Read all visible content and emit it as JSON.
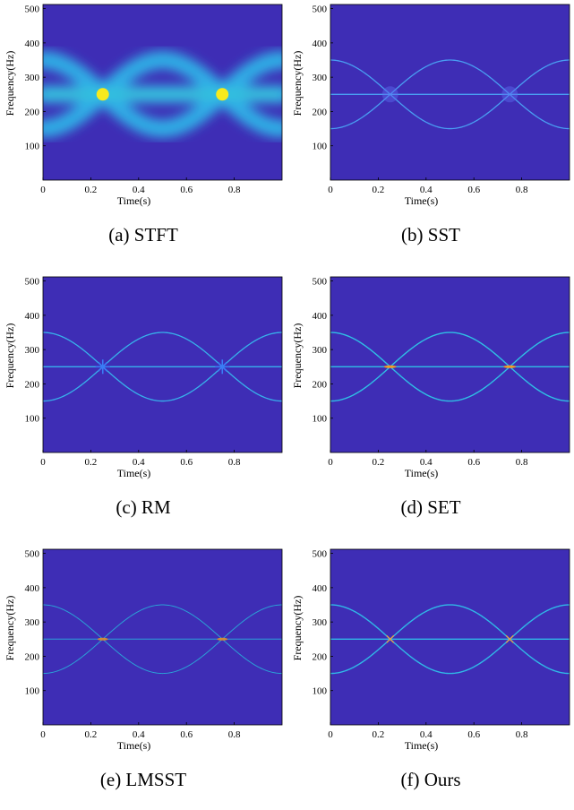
{
  "panels": [
    {
      "caption": "(a) STFT",
      "method": "STFT"
    },
    {
      "caption": "(b) SST",
      "method": "SST"
    },
    {
      "caption": "(c) RM",
      "method": "RM"
    },
    {
      "caption": "(d) SET",
      "method": "SET"
    },
    {
      "caption": "(e) LMSST",
      "method": "LMSST"
    },
    {
      "caption": "(f) Ours",
      "method": "Ours"
    }
  ],
  "chart_data": [
    {
      "type": "heatmap",
      "title": "",
      "xlabel": "Time(s)",
      "ylabel": "Frequency(Hz)",
      "xlim": [
        0,
        1
      ],
      "ylim": [
        0,
        512
      ],
      "xticks": [
        "0",
        "0.2",
        "0.4",
        "0.6",
        "0.8"
      ],
      "yticks": [
        "100",
        "200",
        "300",
        "400",
        "500"
      ],
      "background_color": "#3e2db5",
      "components": [
        {
          "name": "constant tone",
          "frequency_hz": 250
        },
        {
          "name": "sinusoidal FM",
          "center_hz": 250,
          "amplitude_hz": 100,
          "period_s": 1,
          "sign": "negative"
        },
        {
          "name": "sinusoidal FM",
          "center_hz": 250,
          "amplitude_hz": 100,
          "period_s": 1,
          "sign": "positive"
        }
      ],
      "intersections_s": [
        0.25,
        0.75
      ],
      "ridge_appearance": "wide smeared bands, bright yellow at crossings"
    },
    {
      "type": "heatmap",
      "title": "",
      "xlabel": "Time(s)",
      "ylabel": "Frequency(Hz)",
      "xlim": [
        0,
        1
      ],
      "ylim": [
        0,
        512
      ],
      "xticks": [
        "0",
        "0.2",
        "0.4",
        "0.6",
        "0.8"
      ],
      "yticks": [
        "100",
        "200",
        "300",
        "400",
        "500"
      ],
      "background_color": "#3e2db5",
      "components": [
        {
          "name": "constant tone",
          "frequency_hz": 250
        },
        {
          "name": "sinusoidal FM",
          "center_hz": 250,
          "amplitude_hz": 100,
          "period_s": 1,
          "sign": "negative"
        },
        {
          "name": "sinusoidal FM",
          "center_hz": 250,
          "amplitude_hz": 100,
          "period_s": 1,
          "sign": "positive"
        }
      ],
      "intersections_s": [
        0.25,
        0.75
      ],
      "ridge_appearance": "thin ridges, blurred at crossings"
    },
    {
      "type": "heatmap",
      "title": "",
      "xlabel": "Time(s)",
      "ylabel": "Frequency(Hz)",
      "xlim": [
        0,
        1
      ],
      "ylim": [
        0,
        512
      ],
      "xticks": [
        "0",
        "0.2",
        "0.4",
        "0.6",
        "0.8"
      ],
      "yticks": [
        "100",
        "200",
        "300",
        "400",
        "500"
      ],
      "background_color": "#3e2db5",
      "components": [
        {
          "name": "constant tone",
          "frequency_hz": 250
        },
        {
          "name": "sinusoidal FM",
          "center_hz": 250,
          "amplitude_hz": 100,
          "period_s": 1,
          "sign": "negative"
        },
        {
          "name": "sinusoidal FM",
          "center_hz": 250,
          "amplitude_hz": 100,
          "period_s": 1,
          "sign": "positive"
        }
      ],
      "intersections_s": [
        0.25,
        0.75
      ],
      "ridge_appearance": "thin ridges, star artifacts at crossings"
    },
    {
      "type": "heatmap",
      "title": "",
      "xlabel": "Time(s)",
      "ylabel": "Frequency(Hz)",
      "xlim": [
        0,
        1
      ],
      "ylim": [
        0,
        512
      ],
      "xticks": [
        "0",
        "0.2",
        "0.4",
        "0.6",
        "0.8"
      ],
      "yticks": [
        "100",
        "200",
        "300",
        "400",
        "500"
      ],
      "background_color": "#3e2db5",
      "components": [
        {
          "name": "constant tone",
          "frequency_hz": 250
        },
        {
          "name": "sinusoidal FM",
          "center_hz": 250,
          "amplitude_hz": 100,
          "period_s": 1,
          "sign": "negative"
        },
        {
          "name": "sinusoidal FM",
          "center_hz": 250,
          "amplitude_hz": 100,
          "period_s": 1,
          "sign": "positive"
        }
      ],
      "intersections_s": [
        0.25,
        0.75
      ],
      "ridge_appearance": "thin ridges, orange energy at crossings"
    },
    {
      "type": "heatmap",
      "title": "",
      "xlabel": "Time(s)",
      "ylabel": "Frequency(Hz)",
      "xlim": [
        0,
        1
      ],
      "ylim": [
        0,
        512
      ],
      "xticks": [
        "0",
        "0.2",
        "0.4",
        "0.6",
        "0.8"
      ],
      "yticks": [
        "100",
        "200",
        "300",
        "400",
        "500"
      ],
      "background_color": "#3e2db5",
      "components": [
        {
          "name": "constant tone",
          "frequency_hz": 250
        },
        {
          "name": "sinusoidal FM",
          "center_hz": 250,
          "amplitude_hz": 100,
          "period_s": 1,
          "sign": "negative"
        },
        {
          "name": "sinusoidal FM",
          "center_hz": 250,
          "amplitude_hz": 100,
          "period_s": 1,
          "sign": "positive"
        }
      ],
      "intersections_s": [
        0.25,
        0.75
      ],
      "ridge_appearance": "faint thin ridges"
    },
    {
      "type": "heatmap",
      "title": "",
      "xlabel": "Time(s)",
      "ylabel": "Frequency(Hz)",
      "xlim": [
        0,
        1
      ],
      "ylim": [
        0,
        512
      ],
      "xticks": [
        "0",
        "0.2",
        "0.4",
        "0.6",
        "0.8"
      ],
      "yticks": [
        "100",
        "200",
        "300",
        "400",
        "500"
      ],
      "background_color": "#3e2db5",
      "components": [
        {
          "name": "constant tone",
          "frequency_hz": 250
        },
        {
          "name": "sinusoidal FM",
          "center_hz": 250,
          "amplitude_hz": 100,
          "period_s": 1,
          "sign": "negative"
        },
        {
          "name": "sinusoidal FM",
          "center_hz": 250,
          "amplitude_hz": 100,
          "period_s": 1,
          "sign": "positive"
        }
      ],
      "intersections_s": [
        0.25,
        0.75
      ],
      "ridge_appearance": "sharp thin ridges, clean crossings"
    }
  ]
}
